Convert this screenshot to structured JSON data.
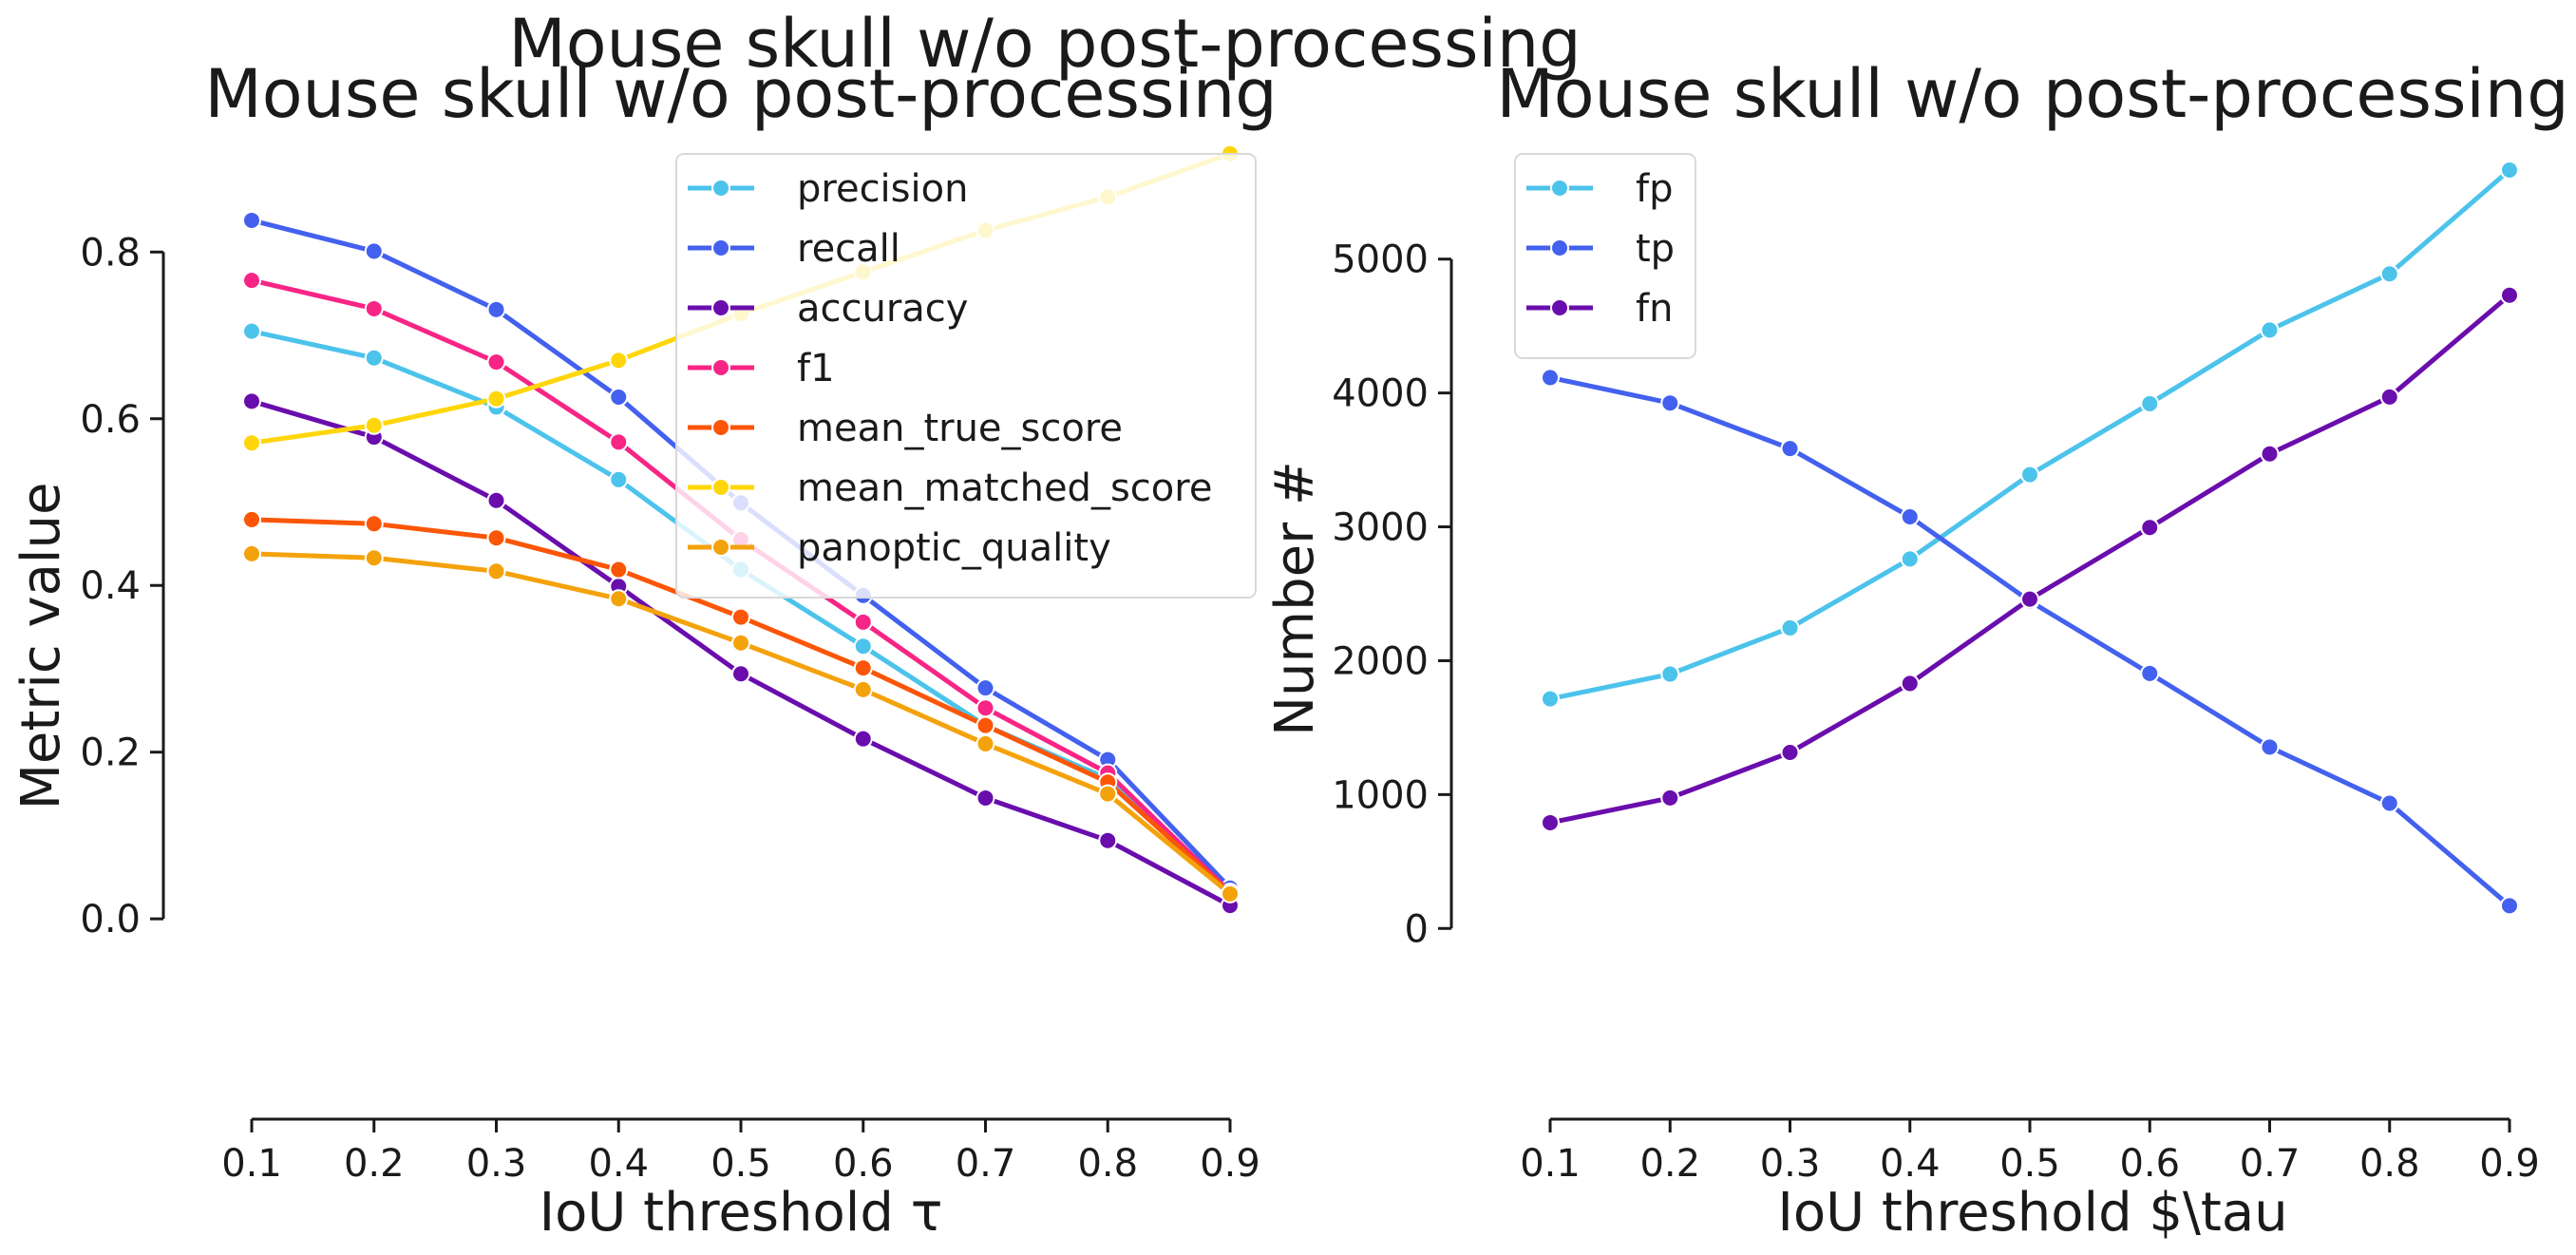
{
  "figure": {
    "suptitle": "Mouse skull w/o post-processing"
  },
  "chart_data": [
    {
      "type": "line",
      "title": "Mouse skull w/o post-processing",
      "xlabel": "IoU threshold τ",
      "ylabel": "Metric value",
      "x": [
        0.1,
        0.2,
        0.3,
        0.4,
        0.5,
        0.6,
        0.7,
        0.8,
        0.9
      ],
      "xticks": [
        "0.1",
        "0.2",
        "0.3",
        "0.4",
        "0.5",
        "0.6",
        "0.7",
        "0.8",
        "0.9"
      ],
      "yticks": [
        0.0,
        0.2,
        0.4,
        0.6,
        0.8
      ],
      "ytick_labels": [
        "0.0",
        "0.2",
        "0.4",
        "0.6",
        "0.8"
      ],
      "xlim": [
        0.1,
        0.9
      ],
      "ylim": [
        -0.14,
        0.92
      ],
      "grid": false,
      "legend": "top-right",
      "series": [
        {
          "name": "precision",
          "color": "#4cc3eb",
          "values": [
            0.705,
            0.673,
            0.614,
            0.527,
            0.419,
            0.327,
            0.232,
            0.168,
            0.035
          ]
        },
        {
          "name": "recall",
          "color": "#4361ee",
          "values": [
            0.838,
            0.801,
            0.731,
            0.626,
            0.499,
            0.388,
            0.277,
            0.191,
            0.037
          ]
        },
        {
          "name": "accuracy",
          "color": "#6a0dad",
          "values": [
            0.621,
            0.578,
            0.502,
            0.399,
            0.294,
            0.216,
            0.145,
            0.094,
            0.016
          ]
        },
        {
          "name": "f1",
          "color": "#f72585",
          "values": [
            0.766,
            0.732,
            0.668,
            0.572,
            0.455,
            0.356,
            0.253,
            0.175,
            0.032
          ]
        },
        {
          "name": "mean_true_score",
          "color": "#fb5607",
          "values": [
            0.479,
            0.474,
            0.457,
            0.419,
            0.362,
            0.301,
            0.232,
            0.164,
            0.031
          ]
        },
        {
          "name": "mean_matched_score",
          "color": "#ffd60a",
          "values": [
            0.571,
            0.592,
            0.624,
            0.67,
            0.726,
            0.776,
            0.826,
            0.866,
            0.918
          ]
        },
        {
          "name": "panoptic_quality",
          "color": "#f4a20c",
          "values": [
            0.438,
            0.433,
            0.417,
            0.384,
            0.331,
            0.275,
            0.21,
            0.15,
            0.03
          ]
        }
      ]
    },
    {
      "type": "line",
      "title": "Mouse skull w/o post-processing",
      "xlabel": "IoU threshold $\\tau",
      "ylabel": "Number #",
      "x": [
        0.1,
        0.2,
        0.3,
        0.4,
        0.5,
        0.6,
        0.7,
        0.8,
        0.9
      ],
      "xticks": [
        "0.1",
        "0.2",
        "0.3",
        "0.4",
        "0.5",
        "0.6",
        "0.7",
        "0.8",
        "0.9"
      ],
      "yticks": [
        0,
        1000,
        2000,
        3000,
        4000,
        5000
      ],
      "ytick_labels": [
        "0",
        "1000",
        "2000",
        "3000",
        "4000",
        "5000"
      ],
      "xlim": [
        0.1,
        0.9
      ],
      "ylim": [
        -800,
        5800
      ],
      "grid": false,
      "legend": "top-left",
      "series": [
        {
          "name": "fp",
          "color": "#4cc3eb",
          "values": [
            1715,
            1900,
            2245,
            2760,
            3390,
            3920,
            4470,
            4890,
            5665
          ]
        },
        {
          "name": "tp",
          "color": "#4361ee",
          "values": [
            4115,
            3925,
            3585,
            3075,
            2445,
            1905,
            1355,
            935,
            170
          ]
        },
        {
          "name": "fn",
          "color": "#6a0dad",
          "values": [
            790,
            975,
            1315,
            1830,
            2460,
            2995,
            3545,
            3970,
            4730
          ]
        }
      ]
    }
  ]
}
